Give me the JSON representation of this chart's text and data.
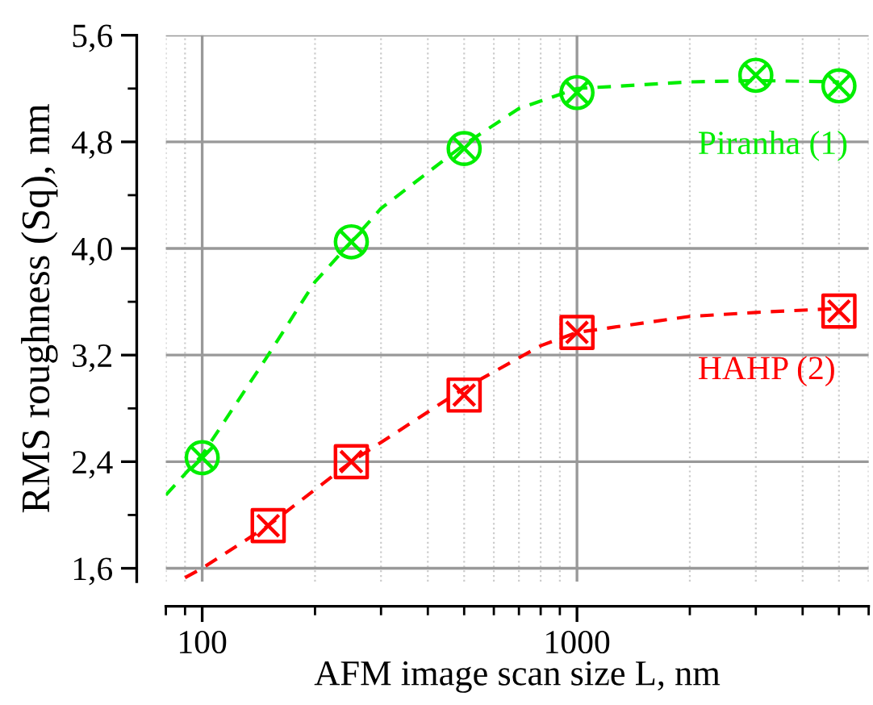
{
  "chart_data": {
    "type": "scatter",
    "xlabel": "AFM image scan size L, nm",
    "ylabel": "RMS roughness (Sq), nm",
    "log": "x",
    "grid": true,
    "legend": false,
    "xlim": [
      80,
      6000
    ],
    "xticks": [
      100,
      1000
    ],
    "ylim": [
      1.5,
      5.6
    ],
    "yticks": [
      {
        "value": 1.6,
        "label": "1,6"
      },
      {
        "value": 2.4,
        "label": "2,4"
      },
      {
        "value": 3.2,
        "label": "3,2"
      },
      {
        "value": 4.0,
        "label": "4,0"
      },
      {
        "value": 4.8,
        "label": "4,8"
      },
      {
        "value": 5.6,
        "label": "5,6"
      }
    ],
    "series": [
      {
        "name": "Piranha (1)",
        "color": "#00ee00",
        "marker": "circle",
        "x": [
          100,
          250,
          500,
          1000,
          3000,
          5000
        ],
        "values": [
          2.43,
          4.05,
          4.75,
          5.17,
          5.3,
          5.22
        ]
      },
      {
        "name": "HAHP (2)",
        "color": "#ff0000",
        "marker": "square",
        "x": [
          150,
          250,
          500,
          1000,
          5000
        ],
        "values": [
          1.92,
          2.4,
          2.9,
          3.37,
          3.53
        ]
      },
      {
        "type": "line",
        "color": "#00ee00",
        "line_style": "dashed",
        "x": [
          80,
          100,
          150,
          200,
          250,
          300,
          500,
          700,
          1000,
          2000,
          3000,
          5000
        ],
        "values": [
          2.15,
          2.45,
          3.2,
          3.75,
          4.05,
          4.3,
          4.78,
          5.05,
          5.2,
          5.25,
          5.26,
          5.25
        ]
      },
      {
        "type": "line",
        "color": "#ff0000",
        "line_style": "dashed",
        "x": [
          90,
          100,
          150,
          250,
          500,
          800,
          1000,
          2000,
          3000,
          5000
        ],
        "values": [
          1.53,
          1.6,
          1.92,
          2.4,
          2.95,
          3.27,
          3.37,
          3.49,
          3.52,
          3.55
        ]
      }
    ]
  }
}
